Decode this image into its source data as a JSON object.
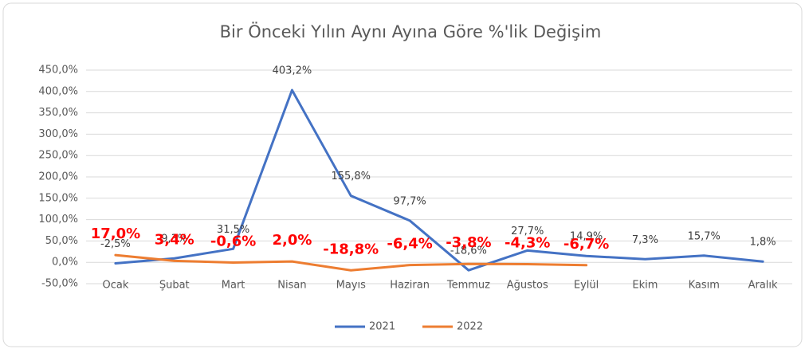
{
  "chart_data": {
    "type": "line",
    "title": "Bir Önceki Yılın Aynı Ayına Göre %'lik Değişim",
    "categories": [
      "Ocak",
      "Şubat",
      "Mart",
      "Nisan",
      "Mayıs",
      "Haziran",
      "Temmuz",
      "Ağustos",
      "Eylül",
      "Ekim",
      "Kasım",
      "Aralık"
    ],
    "series": [
      {
        "name": "2021",
        "color": "#4472c4",
        "values": [
          -2.5,
          9.3,
          31.5,
          403.2,
          155.8,
          97.7,
          -18.6,
          27.7,
          14.9,
          7.3,
          15.7,
          1.8
        ],
        "value_labels": [
          "-2,5%",
          "9,3%",
          "31,5%",
          "403,2%",
          "155,8%",
          "97,7%",
          "-18,6%",
          "27,7%",
          "14,9%",
          "7,3%",
          "15,7%",
          "1,8%"
        ]
      },
      {
        "name": "2022",
        "color": "#ed7d31",
        "values": [
          17.0,
          3.4,
          -0.6,
          2.0,
          -18.8,
          -6.4,
          -3.8,
          -4.3,
          -6.7,
          null,
          null,
          null
        ],
        "value_labels": [
          "17,0%",
          "3,4%",
          "-0,6%",
          "2,0%",
          "-18,8%",
          "-6,4%",
          "-3,8%",
          "-4,3%",
          "-6,7%",
          null,
          null,
          null
        ]
      }
    ],
    "ylim": [
      -50,
      450
    ],
    "yticks": [
      {
        "value": -50,
        "label": "-50,0%"
      },
      {
        "value": 0,
        "label": "0,0%"
      },
      {
        "value": 50,
        "label": "50,0%"
      },
      {
        "value": 100,
        "label": "100,0%"
      },
      {
        "value": 150,
        "label": "150,0%"
      },
      {
        "value": 200,
        "label": "200,0%"
      },
      {
        "value": 250,
        "label": "250,0%"
      },
      {
        "value": 300,
        "label": "300,0%"
      },
      {
        "value": 350,
        "label": "350,0%"
      },
      {
        "value": 400,
        "label": "400,0%"
      },
      {
        "value": 450,
        "label": "450,0%"
      }
    ],
    "grid": true,
    "legend": "bottom"
  }
}
